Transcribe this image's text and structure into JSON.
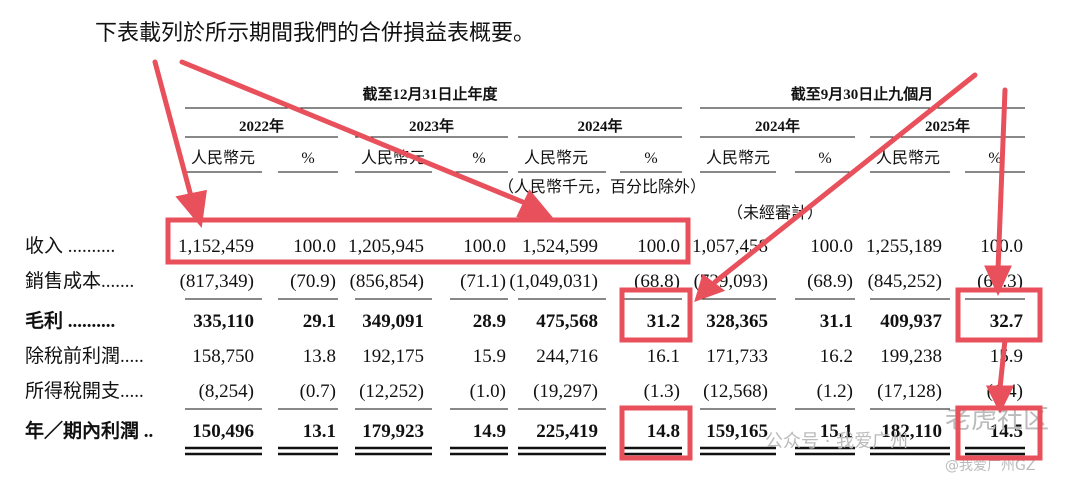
{
  "intro": "下表載列於所示期間我們的合併損益表概要。",
  "header": {
    "groups": [
      "截至12月31日止年度",
      "截至9月30日止九個月"
    ],
    "years": [
      "2022年",
      "2023年",
      "2024年",
      "2024年",
      "2025年"
    ],
    "units": [
      "人民幣元",
      "%",
      "人民幣元",
      "%",
      "人民幣元",
      "%",
      "人民幣元",
      "%",
      "人民幣元",
      "%"
    ],
    "unit_note": "（人民幣千元，百分比除外）",
    "unaudited": "（未經審計）"
  },
  "table": {
    "rows": [
      {
        "label": "收入 ..........",
        "cells": [
          "1,152,459",
          "100.0",
          "1,205,945",
          "100.0",
          "1,524,599",
          "100.0",
          "1,057,458",
          "100.0",
          "1,255,189",
          "100.0"
        ]
      },
      {
        "label": "銷售成本.......",
        "cells": [
          "(817,349)",
          "(70.9)",
          "(856,854)",
          "(71.1)",
          "(1,049,031)",
          "(68.8)",
          "(729,093)",
          "(68.9)",
          "(845,252)",
          "(67.3)"
        ]
      },
      {
        "label": "毛利 ..........",
        "cells": [
          "335,110",
          "29.1",
          "349,091",
          "28.9",
          "475,568",
          "31.2",
          "328,365",
          "31.1",
          "409,937",
          "32.7"
        ]
      },
      {
        "label": "除稅前利潤.....",
        "cells": [
          "158,750",
          "13.8",
          "192,175",
          "15.9",
          "244,716",
          "16.1",
          "171,733",
          "16.2",
          "199,238",
          "15.9"
        ]
      },
      {
        "label": "所得稅開支.....",
        "cells": [
          "(8,254)",
          "(0.7)",
          "(12,252)",
          "(1.0)",
          "(19,297)",
          "(1.3)",
          "(12,568)",
          "(1.2)",
          "(17,128)",
          "(1.4)"
        ]
      },
      {
        "label": "年／期內利潤 ..",
        "cells": [
          "150,496",
          "13.1",
          "179,923",
          "14.9",
          "225,419",
          "14.8",
          "159,165",
          "15.1",
          "182,110",
          "14.5"
        ]
      }
    ]
  },
  "watermark": [
    "公众号 · 我爱广州",
    "老虎社区",
    "@我爱广州GZ"
  ]
}
